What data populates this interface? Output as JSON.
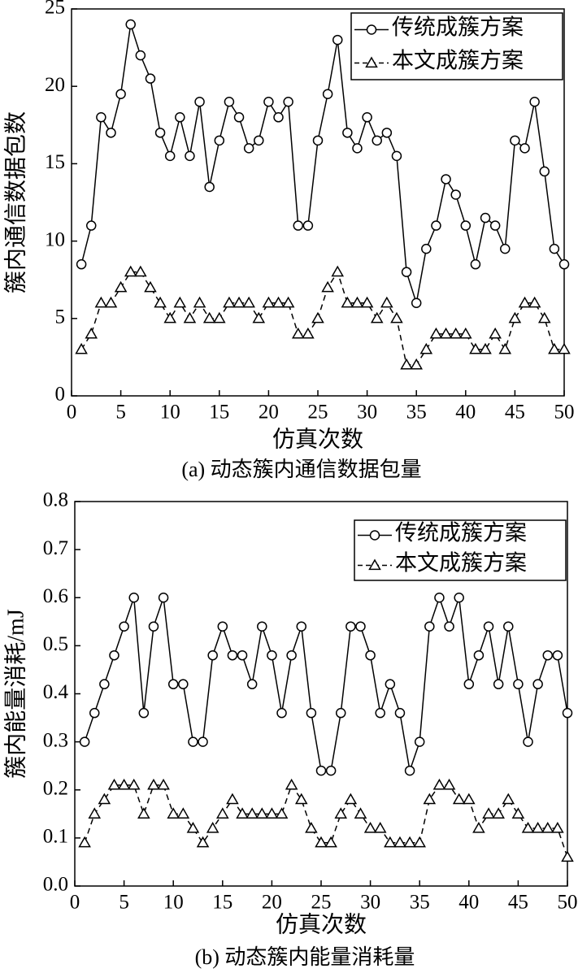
{
  "chart_data": [
    {
      "type": "line",
      "xlabel": "仿真次数",
      "ylabel": "簇内通信数据包数",
      "caption": "(a) 动态簇内通信数据包量",
      "x": [
        1,
        2,
        3,
        4,
        5,
        6,
        7,
        8,
        9,
        10,
        11,
        12,
        13,
        14,
        15,
        16,
        17,
        18,
        19,
        20,
        21,
        22,
        23,
        24,
        25,
        26,
        27,
        28,
        29,
        30,
        31,
        32,
        33,
        34,
        35,
        36,
        37,
        38,
        39,
        40,
        41,
        42,
        43,
        44,
        45,
        46,
        47,
        48,
        49,
        50
      ],
      "series": [
        {
          "name": "传统成簇方案",
          "color": "#000000",
          "marker": "circle",
          "dash": false,
          "values": [
            8.5,
            11,
            18,
            17,
            19.5,
            24,
            22,
            20.5,
            17,
            15.5,
            18,
            15.5,
            19,
            13.5,
            16.5,
            19,
            18,
            16,
            16.5,
            19,
            18,
            19,
            11,
            11,
            16.5,
            19.5,
            23,
            17,
            16,
            18,
            16.5,
            17,
            15.5,
            8,
            6,
            9.5,
            11,
            14,
            13,
            11,
            8.5,
            11.5,
            11,
            9.5,
            16.5,
            16,
            19,
            14.5,
            9.5,
            8.5
          ]
        },
        {
          "name": "本文成簇方案",
          "color": "#000000",
          "marker": "triangle",
          "dash": true,
          "values": [
            3,
            4,
            6,
            6,
            7,
            8,
            8,
            7,
            6,
            5,
            6,
            5,
            6,
            5,
            5,
            6,
            6,
            6,
            5,
            6,
            6,
            6,
            4,
            4,
            5,
            7,
            8,
            6,
            6,
            6,
            5,
            6,
            5,
            2,
            2,
            3,
            4,
            4,
            4,
            4,
            3,
            3,
            4,
            3,
            5,
            6,
            6,
            5,
            3,
            3
          ]
        }
      ],
      "xlim": [
        0,
        50
      ],
      "xticks": [
        0,
        5,
        10,
        15,
        20,
        25,
        30,
        35,
        40,
        45,
        50
      ],
      "ylim": [
        0,
        25
      ],
      "yticks": [
        0,
        5,
        10,
        15,
        20,
        25
      ],
      "legend": "upper right"
    },
    {
      "type": "line",
      "xlabel": "仿真次数",
      "ylabel": "簇内能量消耗/mJ",
      "caption": "(b) 动态簇内能量消耗量",
      "x": [
        1,
        2,
        3,
        4,
        5,
        6,
        7,
        8,
        9,
        10,
        11,
        12,
        13,
        14,
        15,
        16,
        17,
        18,
        19,
        20,
        21,
        22,
        23,
        24,
        25,
        26,
        27,
        28,
        29,
        30,
        31,
        32,
        33,
        34,
        35,
        36,
        37,
        38,
        39,
        40,
        41,
        42,
        43,
        44,
        45,
        46,
        47,
        48,
        49,
        50
      ],
      "series": [
        {
          "name": "传统成簇方案",
          "color": "#000000",
          "marker": "circle",
          "dash": false,
          "values": [
            0.3,
            0.36,
            0.42,
            0.48,
            0.54,
            0.6,
            0.36,
            0.54,
            0.6,
            0.42,
            0.42,
            0.3,
            0.3,
            0.48,
            0.54,
            0.48,
            0.48,
            0.42,
            0.54,
            0.48,
            0.36,
            0.48,
            0.54,
            0.36,
            0.24,
            0.24,
            0.36,
            0.54,
            0.54,
            0.48,
            0.36,
            0.42,
            0.36,
            0.24,
            0.3,
            0.54,
            0.6,
            0.54,
            0.6,
            0.42,
            0.48,
            0.54,
            0.42,
            0.54,
            0.42,
            0.3,
            0.42,
            0.48,
            0.48,
            0.36
          ]
        },
        {
          "name": "本文成簇方案",
          "color": "#000000",
          "marker": "triangle",
          "dash": true,
          "values": [
            0.09,
            0.15,
            0.18,
            0.21,
            0.21,
            0.21,
            0.15,
            0.21,
            0.21,
            0.15,
            0.15,
            0.12,
            0.09,
            0.12,
            0.15,
            0.18,
            0.15,
            0.15,
            0.15,
            0.15,
            0.15,
            0.21,
            0.18,
            0.12,
            0.09,
            0.09,
            0.15,
            0.18,
            0.15,
            0.12,
            0.12,
            0.09,
            0.09,
            0.09,
            0.09,
            0.18,
            0.21,
            0.21,
            0.18,
            0.18,
            0.12,
            0.15,
            0.15,
            0.18,
            0.15,
            0.12,
            0.12,
            0.12,
            0.12,
            0.06
          ]
        }
      ],
      "xlim": [
        0,
        50
      ],
      "xticks": [
        0,
        5,
        10,
        15,
        20,
        25,
        30,
        35,
        40,
        45,
        50
      ],
      "ylim": [
        0,
        0.8
      ],
      "yticks": [
        {
          "value": 0,
          "label": "0.0"
        },
        0.1,
        0.2,
        0.3,
        0.4,
        0.5,
        0.6,
        0.7,
        0.8
      ],
      "legend": "upper right"
    }
  ]
}
